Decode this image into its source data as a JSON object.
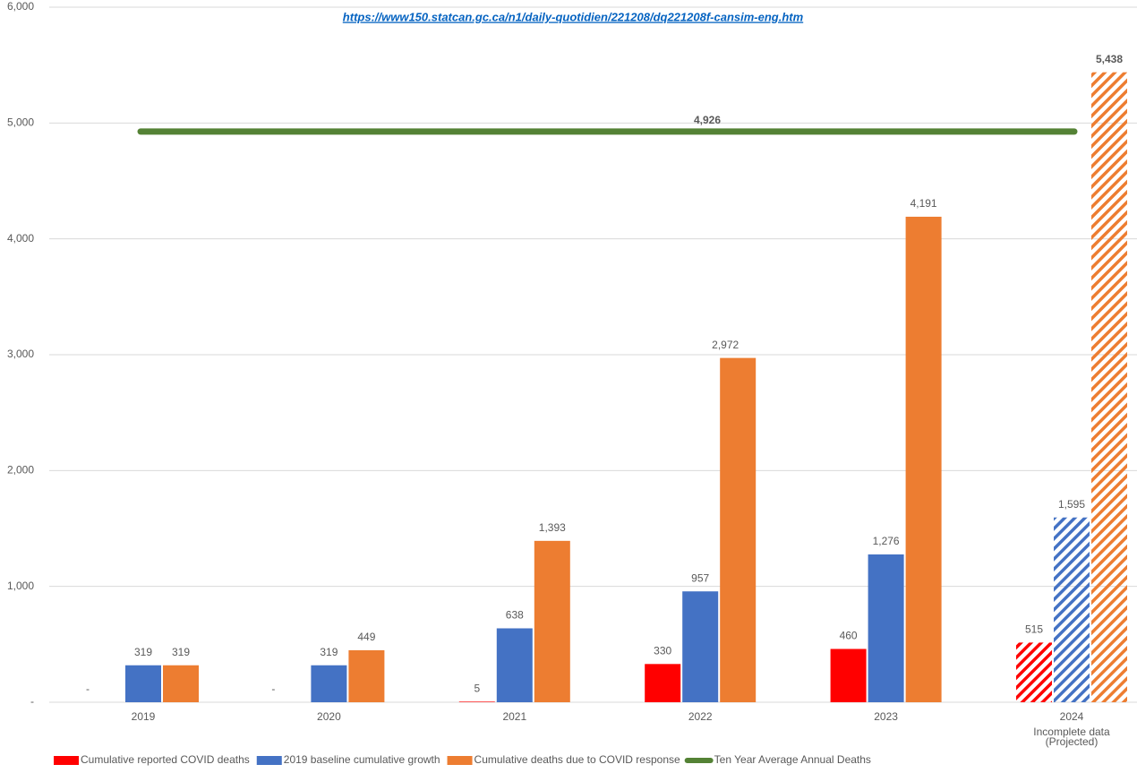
{
  "chart_data": {
    "type": "bar",
    "source_url": "https://www150.statcan.gc.ca/n1/daily-quotidien/221208/dq221208f-cansim-eng.htm",
    "categories": [
      "2019",
      "2020",
      "2021",
      "2022",
      "2023",
      "2024"
    ],
    "category_note": {
      "index": 5,
      "lines": [
        "Incomplete data",
        "(Projected)"
      ]
    },
    "hatched": [
      false,
      false,
      false,
      false,
      false,
      true
    ],
    "series": [
      {
        "name": "Cumulative reported COVID deaths",
        "color": "#ff0000",
        "values": [
          0,
          0,
          5,
          330,
          460,
          515
        ],
        "value_labels": [
          "-",
          "-",
          "5",
          "330",
          "460",
          "515"
        ]
      },
      {
        "name": "2019 baseline cumulative growth",
        "color": "#4472c4",
        "values": [
          319,
          319,
          638,
          957,
          1276,
          1595
        ],
        "value_labels": [
          "319",
          "319",
          "638",
          "957",
          "1,276",
          "1,595"
        ]
      },
      {
        "name": "Cumulative deaths due to COVID response",
        "color": "#ed7d31",
        "values": [
          319,
          449,
          1393,
          2972,
          4191,
          5438
        ],
        "value_labels": [
          "319",
          "449",
          "1,393",
          "2,972",
          "4,191",
          "5,438"
        ]
      }
    ],
    "reference_line": {
      "name": "Ten Year Average Annual Deaths",
      "color": "#548235",
      "value": 4926,
      "value_label": "4,926"
    },
    "emphasis": {
      "series": 2,
      "index": 5,
      "color": "#ff0000"
    },
    "ylim": [
      0,
      6000
    ],
    "yticks": [
      {
        "value": 0,
        "label": "-"
      },
      {
        "value": 1000,
        "label": "1,000"
      },
      {
        "value": 2000,
        "label": "2,000"
      },
      {
        "value": 3000,
        "label": "3,000"
      },
      {
        "value": 4000,
        "label": "4,000"
      },
      {
        "value": 5000,
        "label": "5,000"
      },
      {
        "value": 6000,
        "label": "6,000"
      }
    ],
    "grid": true
  }
}
